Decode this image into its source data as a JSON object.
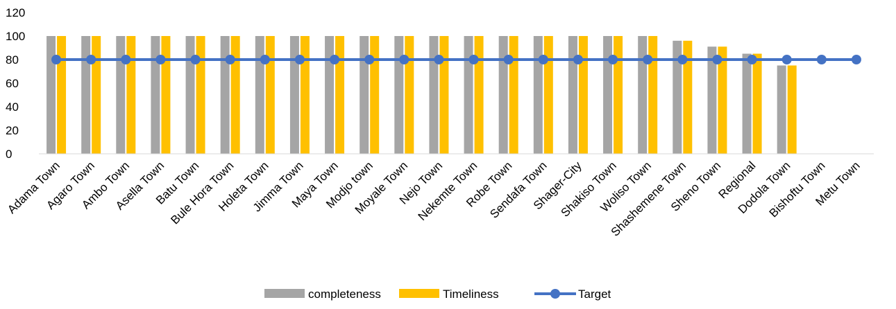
{
  "chart_data": {
    "type": "bar",
    "categories": [
      "Adama Town",
      "Agaro Town",
      "Ambo Town",
      "Asella Town",
      "Batu Town",
      "Bule Hora Town",
      "Holeta Town",
      "Jimma Town",
      "Maya Town",
      "Modjo town",
      "Moyale Town",
      "Nejo Town",
      "Nekemte Town",
      "Robe Town",
      "Sendafa Town",
      "Shager-City",
      "Shakiso Town",
      "Woliso Town",
      "Shashemene Town",
      "Sheno Town",
      "Regional",
      "Dodola Town",
      "Bishoftu Town",
      "Metu Town"
    ],
    "series": [
      {
        "name": "completeness",
        "kind": "bar",
        "color": "#A5A5A5",
        "values": [
          100,
          100,
          100,
          100,
          100,
          100,
          100,
          100,
          100,
          100,
          100,
          100,
          100,
          100,
          100,
          100,
          100,
          100,
          96,
          91,
          85,
          75,
          null,
          null
        ]
      },
      {
        "name": "Timeliness",
        "kind": "bar",
        "color": "#FFC000",
        "values": [
          100,
          100,
          100,
          100,
          100,
          100,
          100,
          100,
          100,
          100,
          100,
          100,
          100,
          100,
          100,
          100,
          100,
          100,
          96,
          91,
          85,
          75,
          null,
          null
        ]
      },
      {
        "name": "Target",
        "kind": "line",
        "color": "#4472C4",
        "values": [
          80,
          80,
          80,
          80,
          80,
          80,
          80,
          80,
          80,
          80,
          80,
          80,
          80,
          80,
          80,
          80,
          80,
          80,
          80,
          80,
          80,
          80,
          80,
          80
        ]
      }
    ],
    "ylim": [
      0,
      120
    ],
    "yticks": [
      0,
      20,
      40,
      60,
      80,
      100,
      120
    ],
    "grid": false,
    "legend": "bottom",
    "title": "",
    "xlabel": "",
    "ylabel": ""
  }
}
